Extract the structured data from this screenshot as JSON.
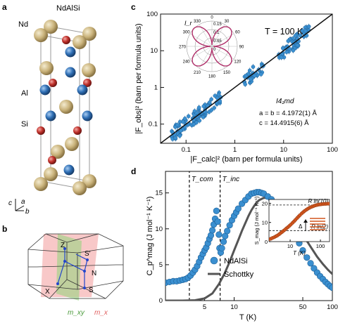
{
  "panel_labels": [
    "a",
    "b",
    "c",
    "d"
  ],
  "crystal": {
    "title": "NdAlSi",
    "atoms": [
      {
        "label": "Nd",
        "color": "#c9b27a"
      },
      {
        "label": "Al",
        "color": "#2f6fb5"
      },
      {
        "label": "Si",
        "color": "#c0312b"
      }
    ],
    "axes": [
      "c",
      "a",
      "b"
    ]
  },
  "brillouin": {
    "points": [
      "Z",
      "S′",
      "N",
      "S",
      "X"
    ],
    "planes": [
      {
        "label": "m_xy",
        "color": "#7fcf6a"
      },
      {
        "label": "m_x",
        "color": "#f3a1a1"
      }
    ]
  },
  "chart_data": [
    {
      "type": "scatter",
      "panel": "c",
      "annotation_temperature": "T = 100 K",
      "space_group": "I4₁md",
      "lattice": [
        "a = b = 4.1972(1) Å",
        "c = 14.4915(6) Å"
      ],
      "xlabel": "|F_calc|² (barn per formula units)",
      "ylabel": "|F_obs|² (barn per formula units)",
      "x_scale": "log",
      "y_scale": "log",
      "xlim": [
        0.03,
        100
      ],
      "ylim": [
        0.03,
        100
      ],
      "x_ticks": [
        0.1,
        1,
        10,
        100
      ],
      "y_ticks": [
        0.1,
        1,
        10,
        100
      ],
      "tick_labels": [
        "0.1",
        "1",
        "10",
        "100"
      ],
      "marker_color": "#3a8fd0",
      "fit_line": {
        "x": [
          0.03,
          100
        ],
        "y": [
          0.03,
          100
        ]
      },
      "clusters": [
        {
          "x_range": [
            0.05,
            0.55
          ],
          "count": 95
        },
        {
          "x_range": [
            1.5,
            4.0
          ],
          "count": 30
        },
        {
          "x_range": [
            8,
            35
          ],
          "count": 60
        }
      ],
      "inset": {
        "label": "I_r",
        "type": "polar",
        "angle_labels": [
          "0",
          "30",
          "60",
          "90",
          "120",
          "150",
          "180",
          "210",
          "240",
          "270",
          "300",
          "330"
        ],
        "radial_labels": [
          "0.15",
          "0.1",
          "0.05",
          "0"
        ],
        "curve_color": "#b0306a"
      }
    },
    {
      "type": "scatter",
      "panel": "d",
      "xlabel": "T (K)",
      "ylabel": "C_p^mag (J mol⁻¹ K⁻¹)",
      "x_scale": "log",
      "xlim": [
        2,
        100
      ],
      "ylim": [
        0,
        18
      ],
      "x_ticks": [
        5,
        10,
        50,
        100
      ],
      "x_tick_labels": [
        "5",
        "10",
        "50",
        "100"
      ],
      "y_ticks": [
        0,
        5,
        10,
        15
      ],
      "y_tick_labels": [
        "0",
        "5",
        "10",
        "15"
      ],
      "vlines": [
        {
          "x": 3.5,
          "label": "T_com"
        },
        {
          "x": 7.2,
          "label": "T_inc"
        }
      ],
      "series": [
        {
          "name": "NdAlSi",
          "color": "#3a8fd0",
          "kind": "markers",
          "x": [
            2.0,
            2.2,
            2.4,
            2.6,
            2.8,
            3.0,
            3.2,
            3.4,
            3.6,
            3.8,
            4.0,
            4.2,
            4.4,
            4.6,
            4.8,
            5.0,
            5.2,
            5.4,
            5.6,
            5.8,
            6.0,
            6.2,
            6.4,
            6.6,
            6.8,
            7.0,
            7.1,
            7.3,
            7.5,
            7.8,
            8.1,
            8.5,
            9.0,
            9.5,
            10,
            10.5,
            11,
            12,
            13,
            14,
            15,
            16,
            17,
            18,
            19,
            20,
            22,
            24,
            26,
            28,
            30,
            34,
            38,
            42,
            46,
            50,
            55,
            60,
            65,
            70,
            75,
            80,
            85,
            90,
            95,
            100
          ],
          "y": [
            2.5,
            2.6,
            2.7,
            2.7,
            2.8,
            2.9,
            3.0,
            3.2,
            3.5,
            3.9,
            4.3,
            4.8,
            5.4,
            6.0,
            6.5,
            7.0,
            7.4,
            8.0,
            8.6,
            9.1,
            9.8,
            10.6,
            11.4,
            12.5,
            11.0,
            9.2,
            7.3,
            6.7,
            7.3,
            8.2,
            9.0,
            9.7,
            10.5,
            11.2,
            11.8,
            12.3,
            12.8,
            13.5,
            14.0,
            14.5,
            14.9,
            15.0,
            15.1,
            15.1,
            15.0,
            14.9,
            14.5,
            14.1,
            13.6,
            13.1,
            12.5,
            11.4,
            10.2,
            9.0,
            8.0,
            7.0,
            6.0,
            5.2,
            4.5,
            3.9,
            3.4,
            3.0,
            2.6,
            2.3,
            2.0,
            1.8
          ]
        },
        {
          "name": "Schottky",
          "color": "#555555",
          "kind": "line",
          "x": [
            2.0,
            3.0,
            4.0,
            5.0,
            6.0,
            7.0,
            8.0,
            9.0,
            10,
            11,
            12,
            13,
            14,
            15,
            16,
            17,
            18,
            20,
            22,
            25,
            30,
            35,
            40,
            50,
            60,
            70,
            80,
            90,
            100
          ],
          "y": [
            0.0,
            0.0,
            0.05,
            0.3,
            1.0,
            2.3,
            3.8,
            5.4,
            7.0,
            8.4,
            9.7,
            10.8,
            11.8,
            12.6,
            13.2,
            13.7,
            14.0,
            14.3,
            14.3,
            14.1,
            13.3,
            12.3,
            11.3,
            9.2,
            7.5,
            6.1,
            5.1,
            4.3,
            3.7
          ]
        }
      ],
      "inset": {
        "xlabel": "T (K)",
        "ylabel": "S_mag (J mol⁻¹ K⁻¹)",
        "x_scale": "log",
        "xlim": [
          2,
          200
        ],
        "ylim": [
          0,
          22
        ],
        "x_ticks": [
          10,
          100
        ],
        "x_tick_labels": [
          "10",
          "100"
        ],
        "y_ticks": [
          0,
          10,
          20
        ],
        "y_tick_labels": [
          "0",
          "10",
          "20"
        ],
        "hlines": [
          {
            "y": 19.1,
            "label": "R ln(10)"
          },
          {
            "y": 5.76,
            "label": "R ln(2)"
          }
        ],
        "delta_label": "Δ",
        "marker_color": "#d2561e",
        "x": [
          2,
          2.3,
          2.6,
          3,
          3.4,
          3.8,
          4.3,
          4.8,
          5.4,
          6,
          6.7,
          7.5,
          8.4,
          9.4,
          10.5,
          12,
          13.5,
          15,
          17,
          19,
          21,
          24,
          27,
          30,
          34,
          38,
          43,
          48,
          54,
          60,
          68,
          76,
          85,
          95,
          106,
          120,
          135,
          150,
          170,
          190
        ],
        "y": [
          1.2,
          1.5,
          1.9,
          2.3,
          2.8,
          3.2,
          3.8,
          4.4,
          5.0,
          5.6,
          6.2,
          6.9,
          7.5,
          8.2,
          8.9,
          9.8,
          10.6,
          11.4,
          12.3,
          13.1,
          13.8,
          14.7,
          15.4,
          16.0,
          16.6,
          17.1,
          17.6,
          18.0,
          18.3,
          18.6,
          18.9,
          19.1,
          19.3,
          19.4,
          19.5,
          19.6,
          19.7,
          19.7,
          19.8,
          19.8
        ]
      }
    }
  ]
}
